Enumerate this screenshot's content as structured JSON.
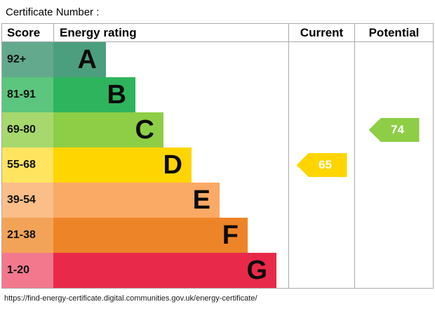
{
  "title": "Certificate Number :",
  "header": {
    "score": "Score",
    "rating": "Energy rating",
    "current": "Current",
    "potential": "Potential"
  },
  "chart_data": {
    "type": "bar",
    "title": "Energy rating",
    "columns": [
      "Score",
      "Energy rating",
      "Current",
      "Potential"
    ],
    "bands": [
      {
        "letter": "A",
        "score": "92+",
        "color": "#4c9f7e",
        "tint": "#63a98d"
      },
      {
        "letter": "B",
        "score": "81-91",
        "color": "#2eb45c",
        "tint": "#5cc57e"
      },
      {
        "letter": "C",
        "score": "69-80",
        "color": "#8dce46",
        "tint": "#a6d86d"
      },
      {
        "letter": "D",
        "score": "55-68",
        "color": "#ffd500",
        "tint": "#ffe460"
      },
      {
        "letter": "E",
        "score": "39-54",
        "color": "#fbaa65",
        "tint": "#fcbe88"
      },
      {
        "letter": "F",
        "score": "21-38",
        "color": "#ee8428",
        "tint": "#f3a357"
      },
      {
        "letter": "G",
        "score": "1-20",
        "color": "#e9294a",
        "tint": "#f2788d"
      }
    ],
    "current": {
      "value": "65",
      "band": "D",
      "color": "#ffd500"
    },
    "potential": {
      "value": "74",
      "band": "C",
      "color": "#8dce46"
    }
  },
  "footer": "https://find-energy-certificate.digital.communities.gov.uk/energy-certificate/"
}
